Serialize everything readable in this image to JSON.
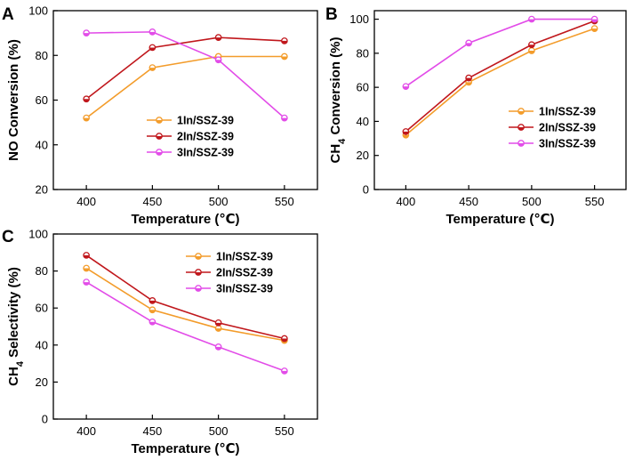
{
  "figure": {
    "colors": {
      "1In/SSZ-39": "#f39c2b",
      "2In/SSZ-39": "#c0171c",
      "3In/SSZ-39": "#e24ce8"
    }
  },
  "chart_data": [
    {
      "panel": "A",
      "type": "line",
      "x": [
        400,
        450,
        500,
        550
      ],
      "xticks": [
        "400",
        "450",
        "500",
        "550"
      ],
      "xlim": [
        375,
        575
      ],
      "ylim": [
        20,
        100
      ],
      "yticks": [
        "20",
        "40",
        "60",
        "80",
        "100"
      ],
      "xlabel": "Temperature (℃)",
      "ylabel": "NO Conversion (%)",
      "legend_position": "center-right",
      "series": [
        {
          "name": "1In/SSZ-39",
          "values": [
            52,
            74.5,
            79.5,
            79.5
          ]
        },
        {
          "name": "2In/SSZ-39",
          "values": [
            60.5,
            83.5,
            88,
            86.5
          ]
        },
        {
          "name": "3In/SSZ-39",
          "values": [
            90,
            90.5,
            78,
            52
          ]
        }
      ]
    },
    {
      "panel": "B",
      "type": "line",
      "x": [
        400,
        450,
        500,
        550
      ],
      "xticks": [
        "400",
        "450",
        "500",
        "550"
      ],
      "xlim": [
        375,
        575
      ],
      "ylim": [
        0,
        105
      ],
      "yticks": [
        "0",
        "20",
        "40",
        "60",
        "80",
        "100"
      ],
      "xlabel": "Temperature (℃)",
      "ylabel": "CH",
      "ylabel_sub": "4",
      "ylabel_rest": " Conversion (%)",
      "legend_position": "bottom-right",
      "series": [
        {
          "name": "1In/SSZ-39",
          "values": [
            32,
            63,
            81.5,
            94.5
          ]
        },
        {
          "name": "2In/SSZ-39",
          "values": [
            34,
            65.5,
            85,
            99
          ]
        },
        {
          "name": "3In/SSZ-39",
          "values": [
            60.5,
            86,
            100,
            100
          ]
        }
      ]
    },
    {
      "panel": "C",
      "type": "line",
      "x": [
        400,
        450,
        500,
        550
      ],
      "xticks": [
        "400",
        "450",
        "500",
        "550"
      ],
      "xlim": [
        375,
        575
      ],
      "ylim": [
        0,
        100
      ],
      "yticks": [
        "0",
        "20",
        "40",
        "60",
        "80",
        "100"
      ],
      "xlabel": "Temperature (℃)",
      "ylabel": "CH",
      "ylabel_sub": "4",
      "ylabel_rest": " Selectivity (%)",
      "legend_position": "top-right",
      "series": [
        {
          "name": "1In/SSZ-39",
          "values": [
            81.5,
            59,
            49,
            42.5
          ]
        },
        {
          "name": "2In/SSZ-39",
          "values": [
            88.5,
            64,
            52,
            43.5
          ]
        },
        {
          "name": "3In/SSZ-39",
          "values": [
            74,
            52.5,
            39,
            26
          ]
        }
      ]
    }
  ]
}
